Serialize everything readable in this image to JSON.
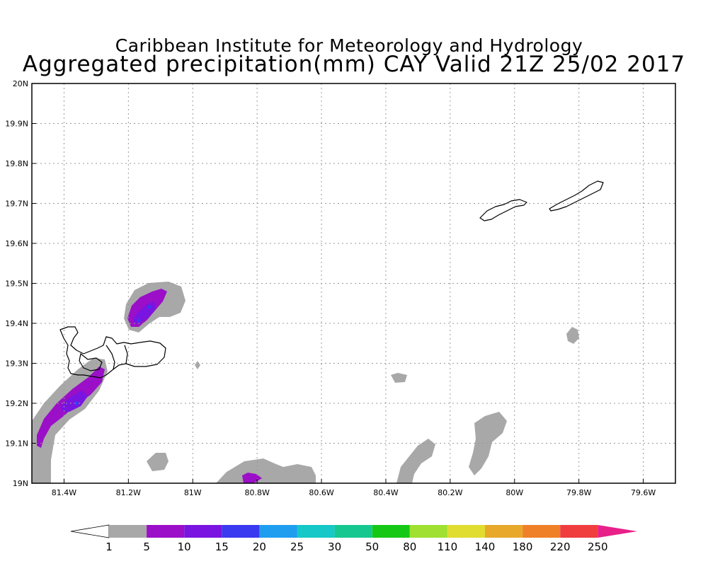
{
  "header": {
    "institute": "Caribbean Institute for Meteorology and Hydrology",
    "product": "Aggregated precipitation(mm) CAY Valid 21Z 25/02 2017"
  },
  "map": {
    "lon_range": [
      -81.5,
      -79.5
    ],
    "lat_range": [
      19.0,
      20.0
    ],
    "lon_ticks": [
      {
        "value": -81.4,
        "label": "81.4W"
      },
      {
        "value": -81.2,
        "label": "81.2W"
      },
      {
        "value": -81.0,
        "label": "81W"
      },
      {
        "value": -80.8,
        "label": "80.8W"
      },
      {
        "value": -80.6,
        "label": "80.6W"
      },
      {
        "value": -80.4,
        "label": "80.4W"
      },
      {
        "value": -80.2,
        "label": "80.2W"
      },
      {
        "value": -80.0,
        "label": "80W"
      },
      {
        "value": -79.8,
        "label": "79.8W"
      },
      {
        "value": -79.6,
        "label": "79.6W"
      }
    ],
    "lat_ticks": [
      {
        "value": 19.0,
        "label": "19N"
      },
      {
        "value": 19.1,
        "label": "19.1N"
      },
      {
        "value": 19.2,
        "label": "19.2N"
      },
      {
        "value": 19.3,
        "label": "19.3N"
      },
      {
        "value": 19.4,
        "label": "19.4N"
      },
      {
        "value": 19.5,
        "label": "19.5N"
      },
      {
        "value": 19.6,
        "label": "19.6N"
      },
      {
        "value": 19.7,
        "label": "19.7N"
      },
      {
        "value": 19.8,
        "label": "19.8N"
      },
      {
        "value": 19.9,
        "label": "19.9N"
      },
      {
        "value": 20.0,
        "label": "20N"
      }
    ],
    "grid": true,
    "grid_color": "#9a9a9a"
  },
  "colorbar": {
    "under_color": "#ffffff",
    "over_color": "#e8208a",
    "bins": [
      {
        "color": "#a8a8a8"
      },
      {
        "color": "#9b0fc8"
      },
      {
        "color": "#7a14e0"
      },
      {
        "color": "#3a3af0"
      },
      {
        "color": "#1f9ef0"
      },
      {
        "color": "#16c8c8"
      },
      {
        "color": "#16c890"
      },
      {
        "color": "#16c816"
      },
      {
        "color": "#a0e030"
      },
      {
        "color": "#e0dc30"
      },
      {
        "color": "#e8a82a"
      },
      {
        "color": "#f08028"
      },
      {
        "color": "#f03e3e"
      }
    ],
    "labels": [
      "1",
      "5",
      "10",
      "15",
      "20",
      "25",
      "30",
      "50",
      "80",
      "110",
      "140",
      "180",
      "220",
      "250"
    ]
  },
  "precip_areas": [
    {
      "level": "1-5",
      "color": "#a8a8a8"
    },
    {
      "level": "5-10",
      "color": "#9b0fc8"
    },
    {
      "level": "10-15",
      "color": "#7a14e0"
    }
  ]
}
